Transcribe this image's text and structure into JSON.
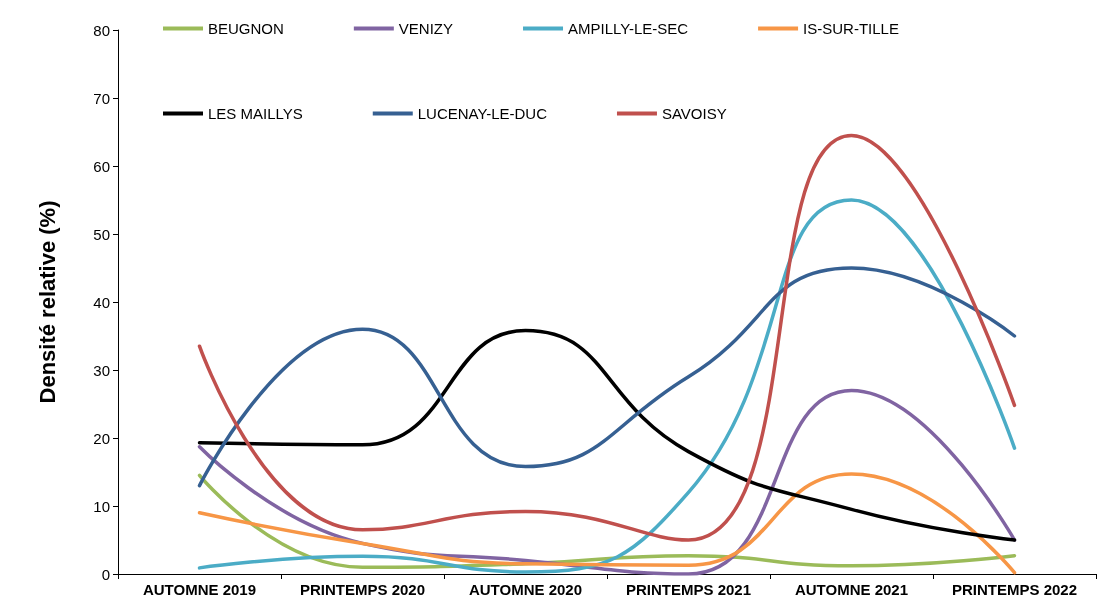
{
  "chart_data": {
    "type": "line",
    "ylabel": "Densité relative (%)",
    "categories": [
      "AUTOMNE 2019",
      "PRINTEMPS 2020",
      "AUTOMNE 2020",
      "PRINTEMPS 2021",
      "AUTOMNE 2021",
      "PRINTEMPS 2022"
    ],
    "ylim": [
      0,
      80
    ],
    "yticks": [
      0,
      10,
      20,
      30,
      40,
      50,
      60,
      70,
      80
    ],
    "grid": false,
    "legend": "top",
    "marker": "none",
    "line_style": "solid",
    "series": [
      {
        "name": "BEUGNON",
        "color": "#9bbb59",
        "values": [
          14.5,
          1,
          1.5,
          2.7,
          1.2,
          2.7
        ]
      },
      {
        "name": "VENIZY",
        "color": "#8064a2",
        "values": [
          18.7,
          4.5,
          2,
          0,
          27,
          5
        ]
      },
      {
        "name": "AMPILLY-LE-SEC",
        "color": "#4bacc6",
        "values": [
          0.9,
          2.6,
          0.3,
          12,
          55,
          18.5
        ]
      },
      {
        "name": "IS-SUR-TILLE",
        "color": "#f79646",
        "values": [
          9,
          4.5,
          1.5,
          1.3,
          14.7,
          0.2
        ]
      },
      {
        "name": "LES MAILLYS",
        "color": "#000000",
        "values": [
          19.3,
          19,
          35.8,
          18,
          9.5,
          5
        ]
      },
      {
        "name": "LUCENAY-LE-DUC",
        "color": "#366092",
        "values": [
          13,
          36,
          15.8,
          29,
          45,
          35
        ]
      },
      {
        "name": "SAVOISY",
        "color": "#c0504d",
        "values": [
          33.5,
          6.5,
          9.2,
          5,
          64.5,
          24.8
        ]
      }
    ]
  }
}
